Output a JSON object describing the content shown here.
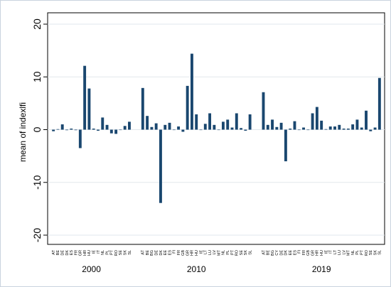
{
  "chart_data": {
    "type": "bar",
    "ylabel": "mean of indexlfi",
    "xlabel": "",
    "ylim": [
      -22,
      22
    ],
    "yticks": [
      -20,
      -10,
      0,
      10,
      20
    ],
    "grid": "horizontal",
    "legend": "none",
    "bar_color": "#1a476f",
    "groups": [
      {
        "label": "2000",
        "categories": [
          "AT",
          "BE",
          "DE",
          "DK",
          "ES",
          "FR",
          "GR",
          "HR",
          "HU",
          "IE",
          "IT",
          "NL",
          "PL",
          "PT",
          "RO",
          "SE",
          "SK",
          "SL"
        ],
        "values": [
          -0.3,
          0.1,
          1.0,
          -0.1,
          0.2,
          -0.1,
          -3.5,
          12.1,
          7.8,
          0.2,
          -0.2,
          2.3,
          0.9,
          -0.7,
          -0.8,
          0.0,
          0.7,
          1.5
        ]
      },
      {
        "label": "2010",
        "categories": [
          "AT",
          "BE",
          "BG",
          "DE",
          "DK",
          "EE",
          "ES",
          "FI",
          "FR",
          "GB",
          "GR",
          "HR",
          "HU",
          "IE",
          "LT",
          "LU",
          "LV",
          "MT",
          "NL",
          "PL",
          "PT",
          "RO",
          "SE",
          "SK",
          "SL"
        ],
        "values": [
          7.9,
          2.6,
          0.5,
          1.2,
          -13.9,
          0.9,
          1.3,
          0.0,
          0.6,
          -0.4,
          8.3,
          14.4,
          2.9,
          0.0,
          1.1,
          3.1,
          0.9,
          0.0,
          1.5,
          1.9,
          0.4,
          3.1,
          0.3,
          -0.2,
          2.9
        ]
      },
      {
        "label": "2019",
        "categories": [
          "AT",
          "BE",
          "BG",
          "CY",
          "DE",
          "DK",
          "EE",
          "ES",
          "FI",
          "FR",
          "GB",
          "GR",
          "HR",
          "HU",
          "IE",
          "IT",
          "LT",
          "LU",
          "LV",
          "MT",
          "NL",
          "PL",
          "PT",
          "RO",
          "SE",
          "SK",
          "SL"
        ],
        "values": [
          7.1,
          0.9,
          1.9,
          0.5,
          1.3,
          -6.0,
          0.2,
          1.6,
          0.0,
          0.4,
          0.0,
          3.1,
          4.3,
          1.7,
          0.1,
          0.6,
          0.6,
          0.9,
          0.2,
          0.2,
          1.0,
          1.9,
          0.4,
          3.6,
          -0.3,
          0.4,
          9.8
        ]
      }
    ]
  }
}
